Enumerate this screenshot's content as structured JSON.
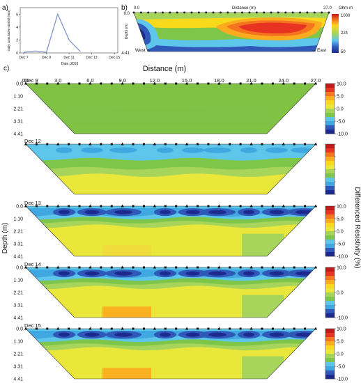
{
  "labels": {
    "panel_a": "a)",
    "panel_b": "b)",
    "panel_c": "c)"
  },
  "chart_data": [
    {
      "type": "line",
      "panel": "a",
      "xlabel": "Date, 2016",
      "ylabel": "Daily cumulative rainfall (mm)",
      "x_ticks": [
        "Dec 7",
        "Dec 9",
        "Dec 11",
        "Dec 13",
        "Dec 15"
      ],
      "y_ticks": [
        "0",
        "2",
        "4",
        "6"
      ],
      "ylim": [
        0,
        7
      ],
      "series": [
        {
          "x": [
            "Dec 7",
            "Dec 8",
            "Dec 9",
            "Dec 10",
            "Dec 11",
            "Dec 12"
          ],
          "values": [
            0.1,
            0.3,
            0.1,
            6.0,
            2.0,
            0.2
          ]
        }
      ],
      "color": "#7a8fc6"
    },
    {
      "type": "heatmap",
      "panel": "b",
      "xlabel": "Distance (m)",
      "ylabel": "Depth (m)",
      "x_ticks": [
        "0.0",
        "27.0"
      ],
      "y_ticks": [
        "0.0",
        "4.41"
      ],
      "direction_labels": {
        "left": "West ←",
        "right": "→ East"
      },
      "colorbar": {
        "unit": "Ohm-m",
        "ticks": [
          "1000",
          "224",
          "50"
        ],
        "scale": "log"
      }
    },
    {
      "type": "heatmap",
      "panel": "c",
      "xlabel": "Distance (m)",
      "ylabel": "Depth (m)",
      "x_ticks": [
        "0.0",
        "3.0",
        "6.0",
        "9.0",
        "12.0",
        "15.0",
        "18.0",
        "21.0",
        "24.0",
        "27.0"
      ],
      "y_ticks": [
        "0.0",
        "1.10",
        "2.21",
        "3.31",
        "4.41"
      ],
      "colorbar": {
        "label": "Differenced Resistivity (%)",
        "ticks": [
          "10.0",
          "5.0",
          "0.0",
          "-5.0",
          "-10.0"
        ],
        "range": [
          -10,
          10
        ]
      },
      "sections": [
        {
          "label": "Dec 9"
        },
        {
          "label": "Dec 12"
        },
        {
          "label": "Dec 13"
        },
        {
          "label": "Dec 14"
        },
        {
          "label": "Dec 15"
        }
      ]
    }
  ],
  "colors": {
    "ramp": [
      "#1c2a8f",
      "#2f58b9",
      "#40a8e0",
      "#5ec6ea",
      "#7dc64a",
      "#a7d45a",
      "#e9e83a",
      "#f9d91c",
      "#fbab1e",
      "#f5741e",
      "#e83222",
      "#c21919"
    ],
    "dec9_fill": "#80c243",
    "grid_line": "#333333"
  }
}
